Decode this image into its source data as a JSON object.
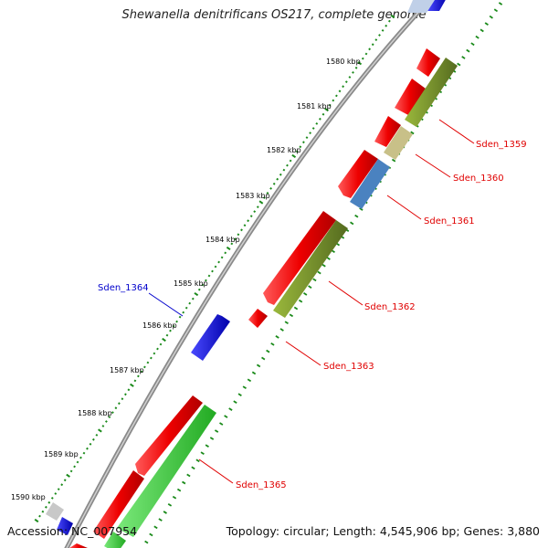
{
  "title": "Shewanella denitrificans OS217, complete genome",
  "footer": {
    "accession": "Accession: NC_007954",
    "summary": "Topology: circular; Length: 4,545,906 bp; Genes: 3,880"
  },
  "scale_labels": [
    "1580 kbp",
    "1581 kbp",
    "1582 kbp",
    "1583 kbp",
    "1584 kbp",
    "1585 kbp",
    "1586 kbp",
    "1587 kbp",
    "1588 kbp",
    "1589 kbp",
    "1590 kbp"
  ],
  "gene_labels": [
    {
      "text": "Sden_1359",
      "color": "#e00000"
    },
    {
      "text": "Sden_1360",
      "color": "#e00000"
    },
    {
      "text": "Sden_1361",
      "color": "#e00000"
    },
    {
      "text": "Sden_1362",
      "color": "#e00000"
    },
    {
      "text": "Sden_1363",
      "color": "#e00000"
    },
    {
      "text": "Sden_1364",
      "color": "#0000cc"
    },
    {
      "text": "Sden_1365",
      "color": "#e00000"
    }
  ],
  "colors": {
    "backbone": "#8a8a8a",
    "cds": "#ee0000",
    "gene_olive": "#6b8e23",
    "gene_tan": "#c8c088",
    "gene_steel": "#4a82c0",
    "gene_blue": "#0000ee",
    "gene_green": "#33cc33",
    "tick": "#1a8a1a"
  }
}
